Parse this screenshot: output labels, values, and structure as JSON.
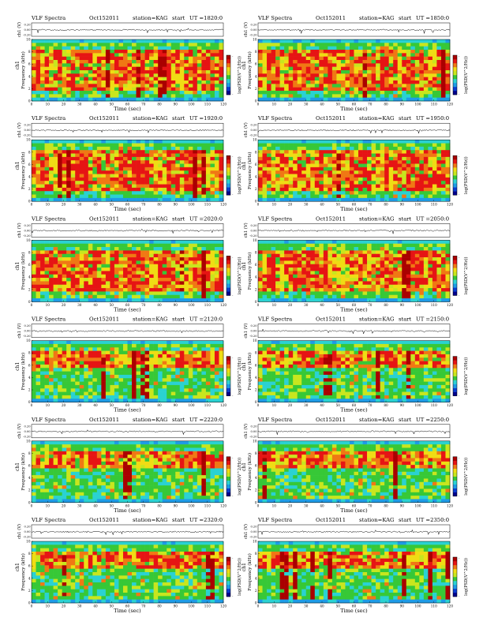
{
  "page": {
    "title": "VLF Spectra",
    "date": "Oct152011",
    "station": "station=KAG",
    "start_prefix": "start",
    "time_label": "Time (sec)",
    "freq_label": "Frequency (kHz)",
    "ch_label": "ch1",
    "ch_unit_label": "ch1 (V)",
    "colorbar_label": "log(PSD(V^2/Hz))"
  },
  "panels": [
    {
      "ut": "UT =1820:0",
      "layer": "mid"
    },
    {
      "ut": "UT =1850:0",
      "layer": "mid"
    },
    {
      "ut": "UT =1920:0",
      "layer": "mid"
    },
    {
      "ut": "UT =1950:0",
      "layer": "mid"
    },
    {
      "ut": "UT =2020:0",
      "layer": "mid"
    },
    {
      "ut": "UT =2050:0",
      "layer": "mid"
    },
    {
      "ut": "UT =2120:0",
      "layer": "upper"
    },
    {
      "ut": "UT =2150:0",
      "layer": "upper"
    },
    {
      "ut": "UT =2220:0",
      "layer": "upper"
    },
    {
      "ut": "UT =2250:0",
      "layer": "upper"
    },
    {
      "ut": "UT =2320:0",
      "layer": "upper"
    },
    {
      "ut": "UT =2350:0",
      "layer": "upper"
    }
  ],
  "chart_data": {
    "type": "heatmap",
    "x_ticks": [
      0,
      10,
      20,
      30,
      40,
      50,
      60,
      70,
      80,
      90,
      100,
      110,
      120
    ],
    "xlim": [
      0,
      120
    ],
    "y_ticks": [
      0,
      2,
      4,
      6,
      8,
      10
    ],
    "ylim": [
      0,
      10
    ],
    "ch_ticks": [
      "0.20",
      "0.00",
      "-0.20"
    ],
    "ch_lim": [
      -0.2,
      0.2
    ],
    "colorbar_ticks": [
      "-",
      "-"
    ],
    "colormap": [
      "#00008c",
      "#0a3cd2",
      "#1e9be6",
      "#2ad2d2",
      "#37c837",
      "#c8e61e",
      "#f0dc14",
      "#f07814",
      "#e61414",
      "#aa0000"
    ]
  }
}
